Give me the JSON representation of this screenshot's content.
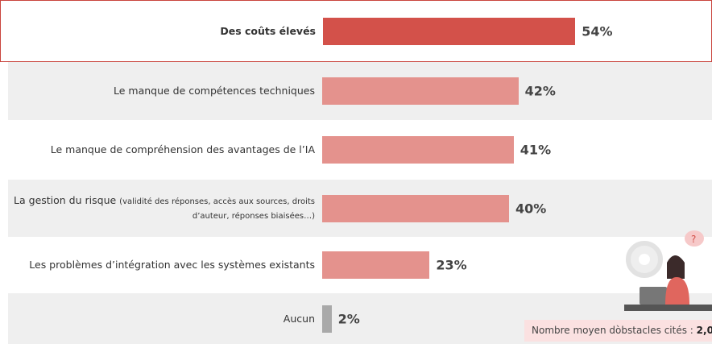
{
  "chart_data": {
    "type": "bar",
    "orientation": "horizontal",
    "categories": [
      "Des coûts élevés",
      "Le manque  de compétences techniques",
      "Le manque  de compréhension des avantages de l’IA",
      "La gestion du risque",
      "Les problèmes d’intégration avec les systèmes existants",
      "Aucun"
    ],
    "category_details": [
      null,
      null,
      null,
      "(validité des réponses, accès aux sources, droits d’auteur, réponses biaisées…)",
      null,
      null
    ],
    "values": [
      54,
      42,
      41,
      40,
      23,
      2
    ],
    "value_labels": [
      "54%",
      "42%",
      "41%",
      "40%",
      "23%",
      "2%"
    ],
    "colors": [
      "#d3514a",
      "#e4928d",
      "#e4928d",
      "#e4928d",
      "#e4928d",
      "#a9a9a9"
    ],
    "note": {
      "label": "Nombre moyen dòbstacles cités :",
      "value": "2,0"
    }
  }
}
